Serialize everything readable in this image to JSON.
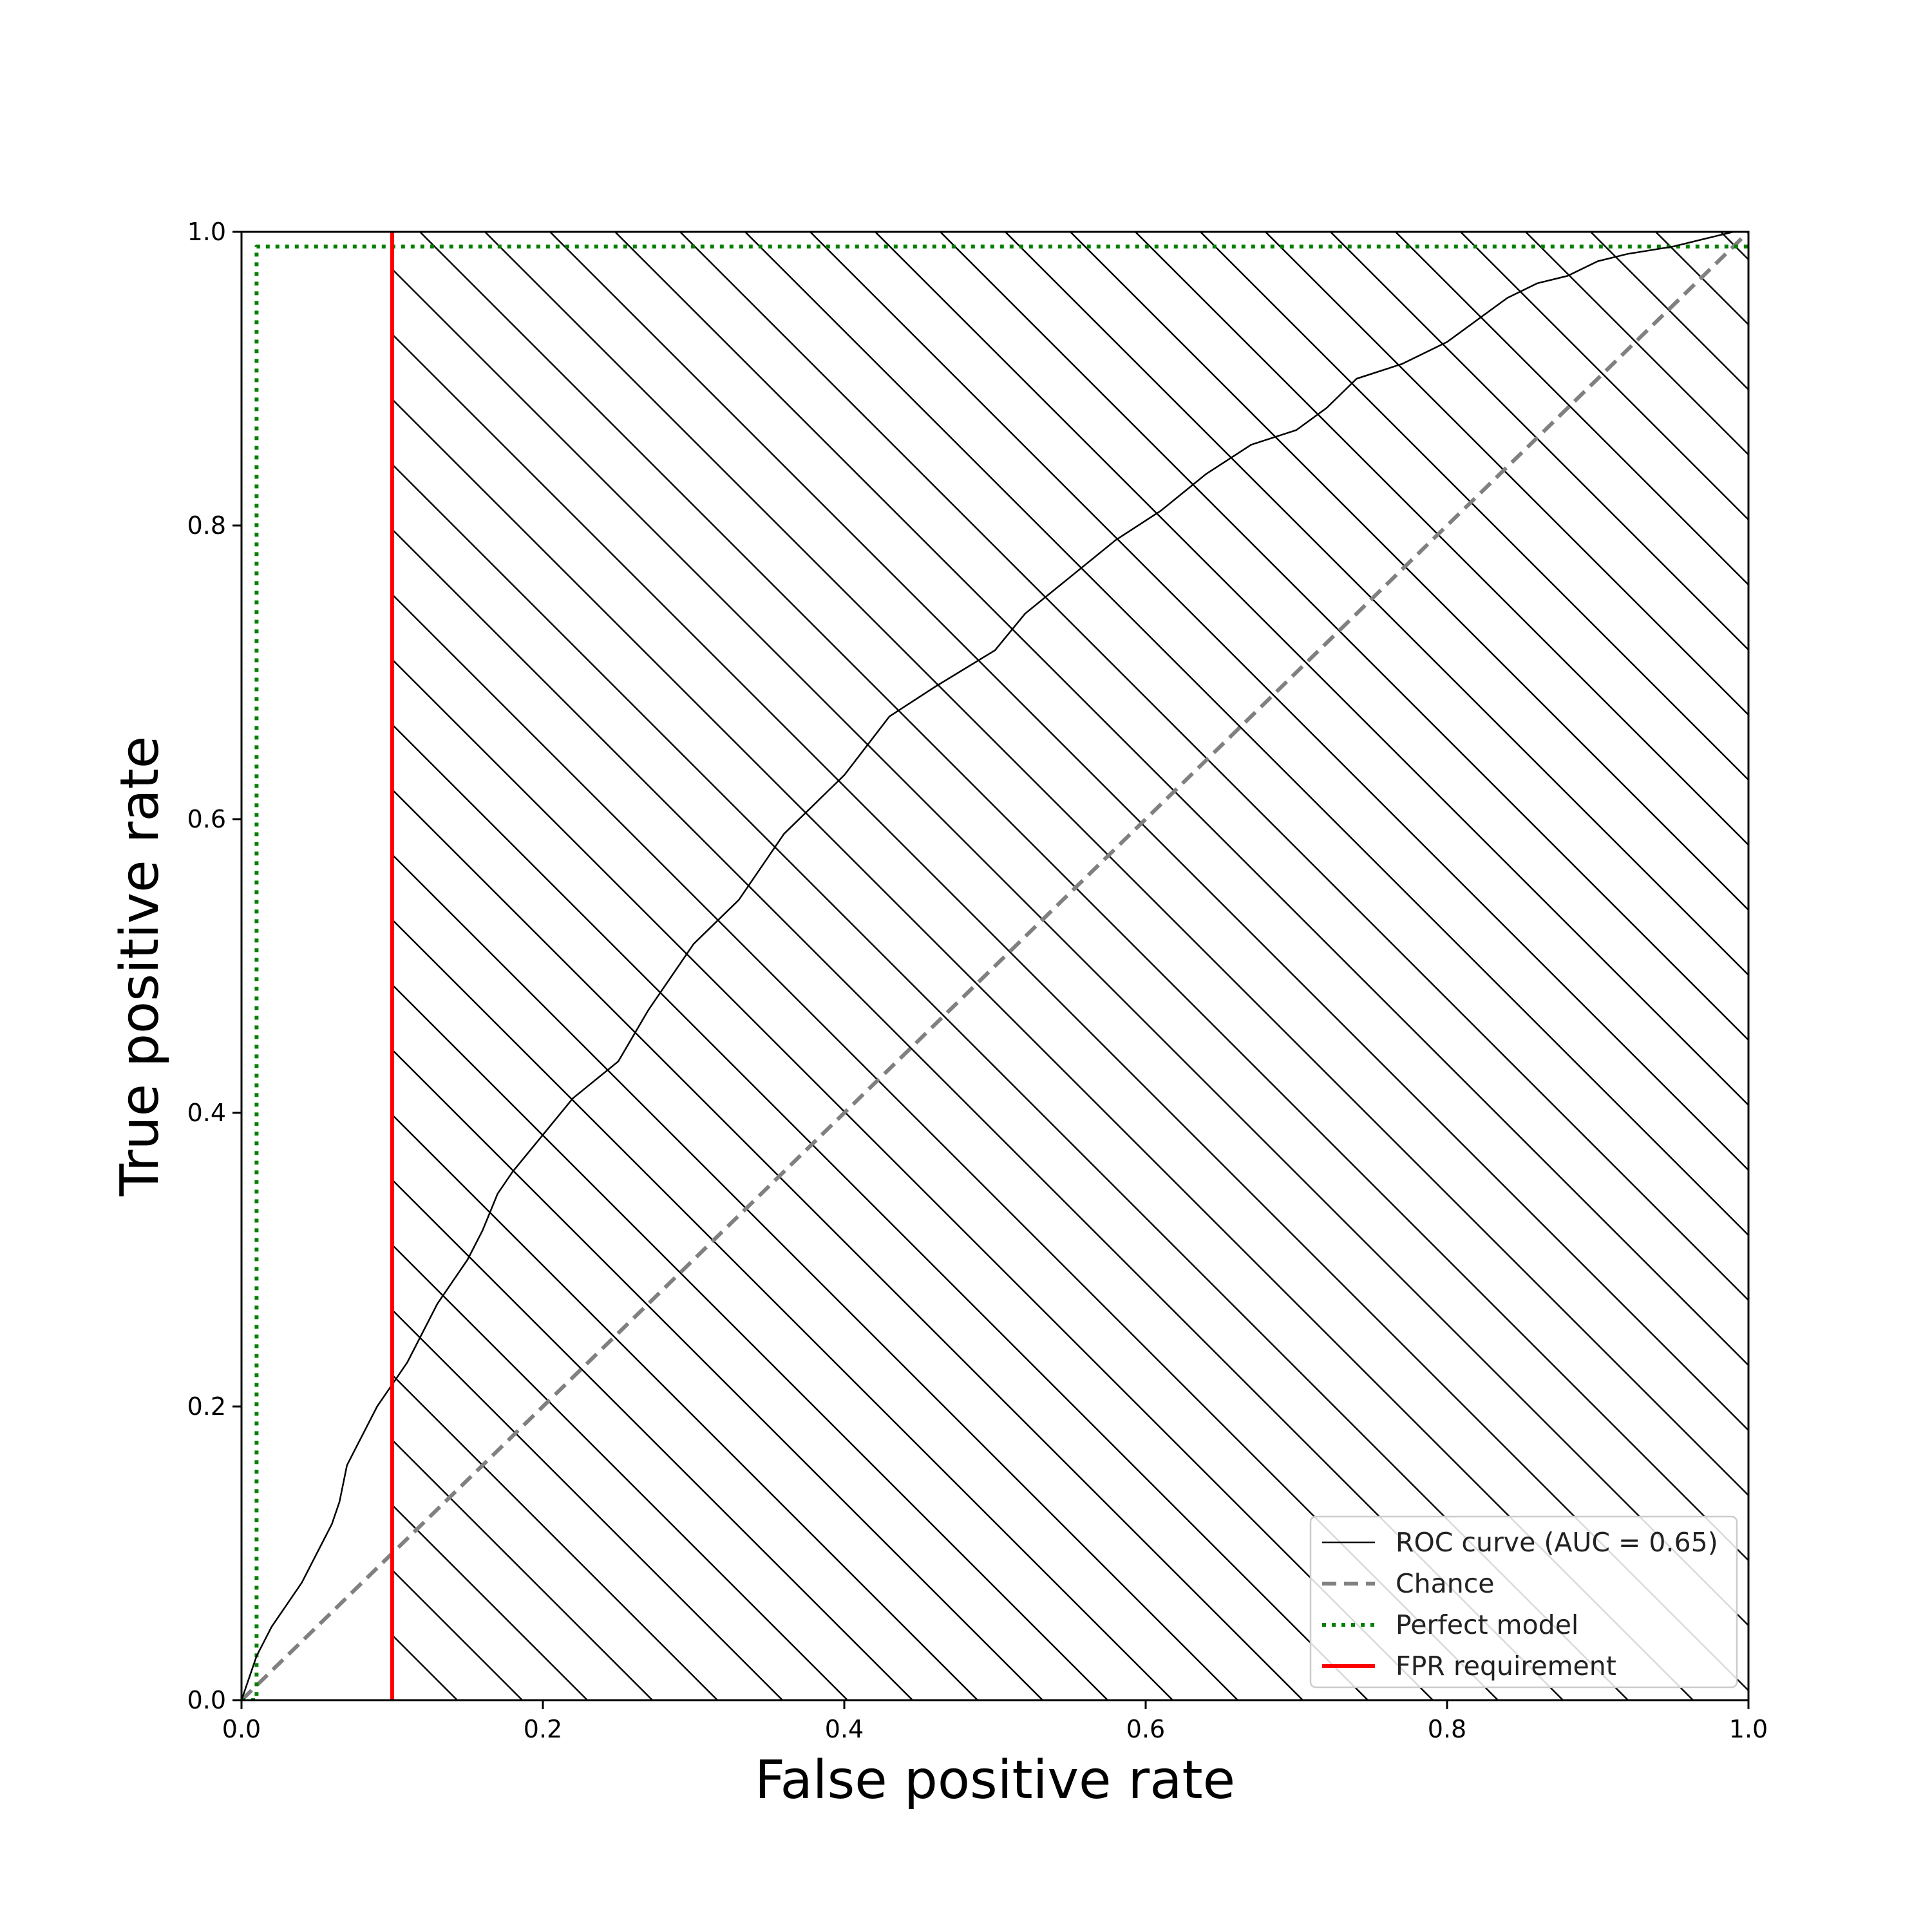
{
  "chart_data": {
    "type": "line",
    "xlabel": "False positive rate",
    "ylabel": "True positive rate",
    "xlim": [
      0,
      1
    ],
    "ylim": [
      0,
      1
    ],
    "x_ticks": [
      "0.0",
      "0.2",
      "0.4",
      "0.6",
      "0.8",
      "1.0"
    ],
    "y_ticks": [
      "0.0",
      "0.2",
      "0.4",
      "0.6",
      "0.8",
      "1.0"
    ],
    "grid": false,
    "legend_position": "lower-right",
    "hatched_region": {
      "x_from": 0.1,
      "x_to": 1.0,
      "pattern": "diagonal"
    },
    "series": [
      {
        "name": "ROC curve (AUC = 0.65)",
        "color": "#000000",
        "style": "solid",
        "x": [
          0,
          0.005,
          0.01,
          0.015,
          0.02,
          0.03,
          0.04,
          0.05,
          0.06,
          0.065,
          0.07,
          0.08,
          0.09,
          0.1,
          0.11,
          0.12,
          0.13,
          0.14,
          0.15,
          0.16,
          0.17,
          0.18,
          0.2,
          0.22,
          0.25,
          0.27,
          0.3,
          0.33,
          0.36,
          0.4,
          0.43,
          0.46,
          0.5,
          0.52,
          0.55,
          0.58,
          0.61,
          0.64,
          0.67,
          0.7,
          0.72,
          0.74,
          0.77,
          0.8,
          0.82,
          0.84,
          0.86,
          0.88,
          0.9,
          0.92,
          0.95,
          0.97,
          0.99,
          1.0
        ],
        "y": [
          0,
          0.015,
          0.03,
          0.04,
          0.05,
          0.065,
          0.08,
          0.1,
          0.12,
          0.135,
          0.16,
          0.18,
          0.2,
          0.215,
          0.23,
          0.25,
          0.27,
          0.285,
          0.3,
          0.32,
          0.345,
          0.36,
          0.385,
          0.41,
          0.435,
          0.47,
          0.515,
          0.545,
          0.59,
          0.63,
          0.67,
          0.69,
          0.715,
          0.74,
          0.765,
          0.79,
          0.81,
          0.835,
          0.855,
          0.865,
          0.88,
          0.9,
          0.91,
          0.925,
          0.94,
          0.955,
          0.965,
          0.97,
          0.98,
          0.985,
          0.99,
          0.995,
          1.0,
          1.0
        ]
      },
      {
        "name": "Chance",
        "color": "#808080",
        "style": "dashed",
        "x": [
          0,
          1
        ],
        "y": [
          0,
          1
        ]
      },
      {
        "name": "Perfect model",
        "color": "#008000",
        "style": "dotted",
        "x": [
          0,
          0.01,
          0.01,
          1
        ],
        "y": [
          0,
          0,
          0.99,
          0.99
        ]
      },
      {
        "name": "FPR requirement",
        "color": "#ff0000",
        "style": "solid",
        "x": [
          0.1,
          0.1
        ],
        "y": [
          0,
          1
        ]
      }
    ]
  }
}
